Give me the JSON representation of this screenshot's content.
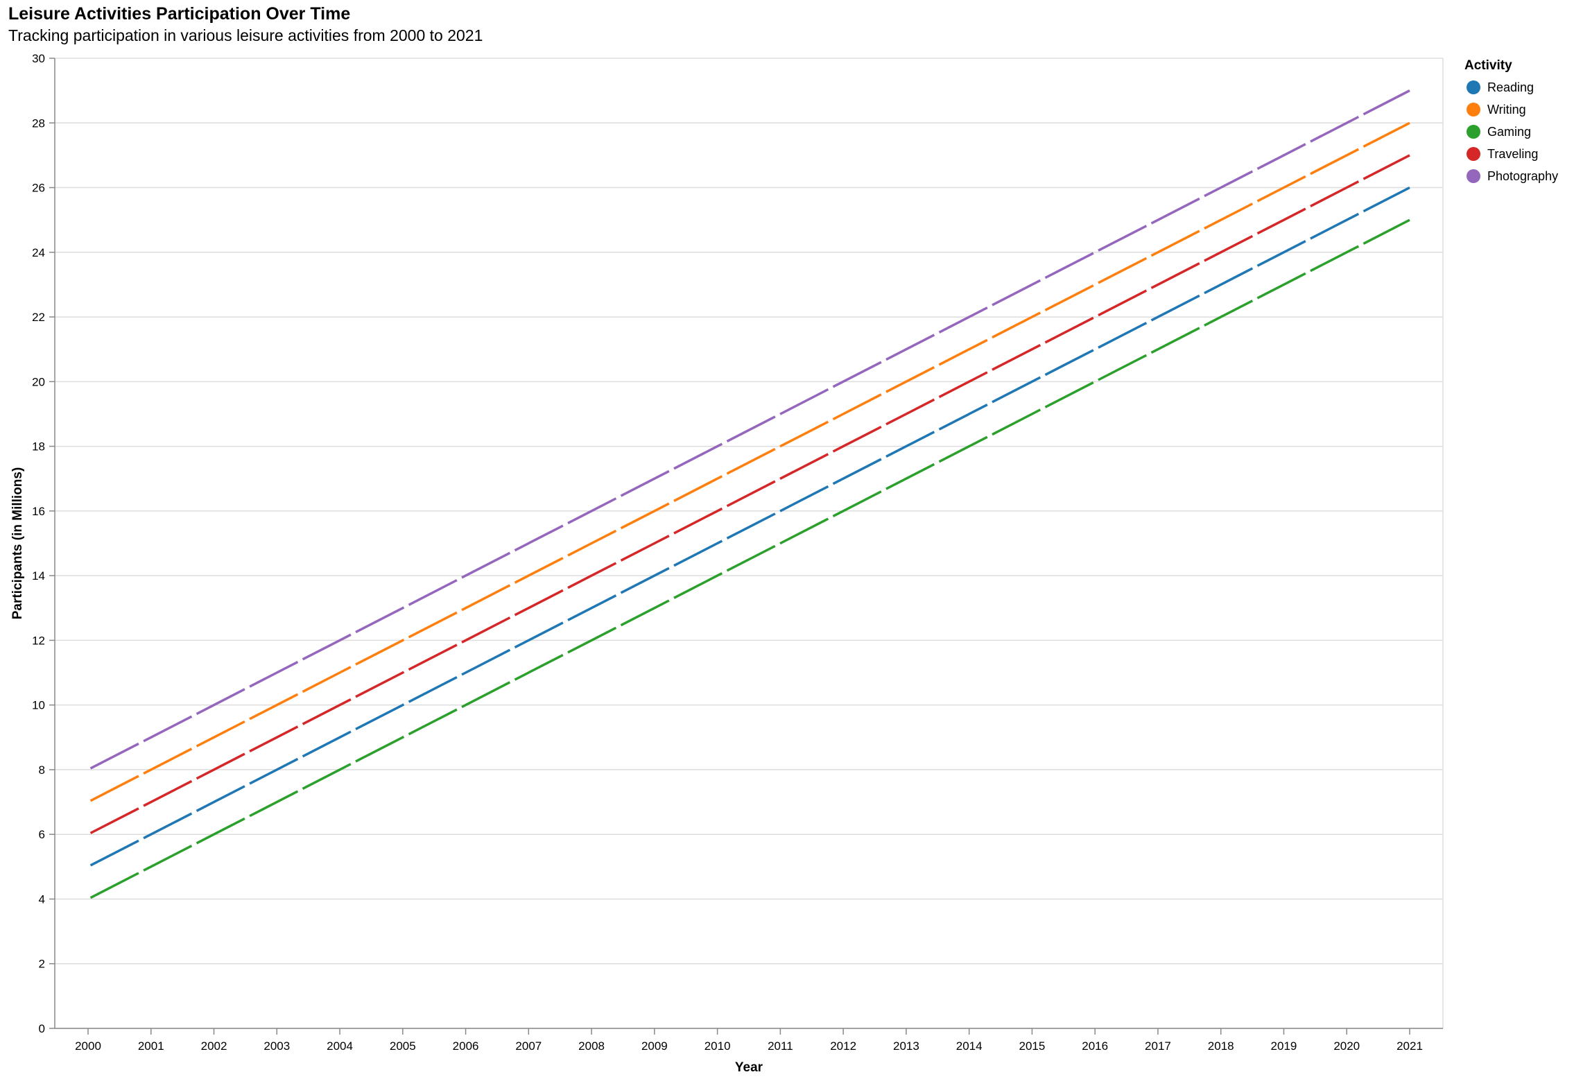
{
  "chart_data": {
    "type": "line",
    "title": "Leisure Activities Participation Over Time",
    "subtitle": "Tracking participation in various leisure activities from 2000 to 2021",
    "xlabel": "Year",
    "ylabel": "Participants (in Millions)",
    "legend_title": "Activity",
    "legend_position": "top-right",
    "grid": true,
    "line_style": "dashed",
    "ylim": [
      0,
      30
    ],
    "yticks": [
      0,
      2,
      4,
      6,
      8,
      10,
      12,
      14,
      16,
      18,
      20,
      22,
      24,
      26,
      28,
      30
    ],
    "x": [
      "2000",
      "2001",
      "2002",
      "2003",
      "2004",
      "2005",
      "2006",
      "2007",
      "2008",
      "2009",
      "2010",
      "2011",
      "2012",
      "2013",
      "2014",
      "2015",
      "2016",
      "2017",
      "2018",
      "2019",
      "2020",
      "2021"
    ],
    "series": [
      {
        "name": "Reading",
        "color": "#1f77b4",
        "values": [
          5,
          6,
          7,
          8,
          9,
          10,
          11,
          12,
          13,
          14,
          15,
          16,
          17,
          18,
          19,
          20,
          21,
          22,
          23,
          24,
          25,
          26
        ]
      },
      {
        "name": "Writing",
        "color": "#ff7f0e",
        "values": [
          7,
          8,
          9,
          10,
          11,
          12,
          13,
          14,
          15,
          16,
          17,
          18,
          19,
          20,
          21,
          22,
          23,
          24,
          25,
          26,
          27,
          28
        ]
      },
      {
        "name": "Gaming",
        "color": "#2ca02c",
        "values": [
          4,
          5,
          6,
          7,
          8,
          9,
          10,
          11,
          12,
          13,
          14,
          15,
          16,
          17,
          18,
          19,
          20,
          21,
          22,
          23,
          24,
          25
        ]
      },
      {
        "name": "Traveling",
        "color": "#d62728",
        "values": [
          6,
          7,
          8,
          9,
          10,
          11,
          12,
          13,
          14,
          15,
          16,
          17,
          18,
          19,
          20,
          21,
          22,
          23,
          24,
          25,
          26,
          27
        ]
      },
      {
        "name": "Photography",
        "color": "#9467bd",
        "values": [
          8,
          9,
          10,
          11,
          12,
          13,
          14,
          15,
          16,
          17,
          18,
          19,
          20,
          21,
          22,
          23,
          24,
          25,
          26,
          27,
          28,
          29
        ]
      }
    ]
  }
}
